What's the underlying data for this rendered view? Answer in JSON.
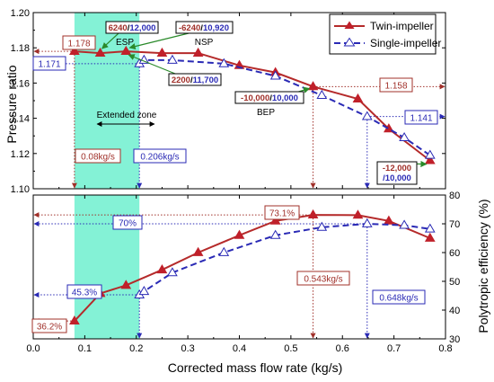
{
  "colors": {
    "twin": "#b52a2a",
    "twin_marker": "#c0202a",
    "single": "#2a2ab5",
    "zone": "#6ff0cf",
    "annot_red": "#a0302a",
    "annot_blue": "#2a2ab5",
    "green_arrow": "#2a8a2a"
  },
  "chart_data": [
    {
      "type": "line",
      "panel": "top",
      "ylabel": "Pressure ratio",
      "xlim": [
        0.0,
        0.8
      ],
      "ylim": [
        1.1,
        1.2
      ],
      "y_ticks": [
        "1.10",
        "1.12",
        "1.14",
        "1.16",
        "1.18",
        "1.20"
      ],
      "legend_position": "top-right",
      "series": [
        {
          "name": "Twin-impeller",
          "x": [
            0.08,
            0.13,
            0.18,
            0.25,
            0.32,
            0.4,
            0.47,
            0.543,
            0.63,
            0.69,
            0.77
          ],
          "y": [
            1.178,
            1.177,
            1.178,
            1.177,
            1.177,
            1.17,
            1.166,
            1.158,
            1.151,
            1.134,
            1.116
          ]
        },
        {
          "name": "Single-impeller",
          "x": [
            0.206,
            0.215,
            0.27,
            0.37,
            0.47,
            0.56,
            0.648,
            0.72,
            0.77
          ],
          "y": [
            1.171,
            1.173,
            1.173,
            1.171,
            1.164,
            1.153,
            1.141,
            1.129,
            1.119
          ]
        }
      ],
      "annotations": {
        "twin_left_value": "1.178",
        "single_left_value": "1.171",
        "twin_right_value": "1.158",
        "single_right_value": "1.141",
        "flow_twin": "0.08kg/s",
        "flow_single": "0.206kg/s",
        "extended_zone": "Extended zone",
        "esp_label": "ESP",
        "esp_red": "6240",
        "esp_sep": "/",
        "esp_blue": "12,000",
        "nsp_label": "NSP",
        "nsp_red": "-6240",
        "nsp_sep": "/",
        "nsp_blue": "10,920",
        "mid_red": "2200",
        "mid_sep": "/",
        "mid_blue": "11,700",
        "bep_label": "BEP",
        "bep_red": "-10,000",
        "bep_sep": "/",
        "bep_blue": "10,000",
        "end_red": "-12,000",
        "end_blue": "/10,000"
      }
    },
    {
      "type": "line",
      "panel": "bottom",
      "ylabel": "Polytropic efficiency (%)",
      "xlabel": "Corrected mass flow rate (kg/s)",
      "xlim": [
        0.0,
        0.8
      ],
      "ylim": [
        30,
        80
      ],
      "x_ticks": [
        "0.0",
        "0.1",
        "0.2",
        "0.3",
        "0.4",
        "0.5",
        "0.6",
        "0.7",
        "0.8"
      ],
      "y_ticks": [
        "30",
        "40",
        "50",
        "60",
        "70",
        "80"
      ],
      "series": [
        {
          "name": "Twin-impeller",
          "x": [
            0.08,
            0.13,
            0.18,
            0.25,
            0.32,
            0.4,
            0.47,
            0.543,
            0.63,
            0.69,
            0.77
          ],
          "y": [
            36.2,
            45.8,
            48.6,
            54.0,
            60.0,
            66.0,
            71.0,
            73.1,
            73.0,
            71.0,
            65.0
          ]
        },
        {
          "name": "Single-impeller",
          "x": [
            0.206,
            0.215,
            0.27,
            0.37,
            0.47,
            0.56,
            0.648,
            0.72,
            0.77
          ],
          "y": [
            45.3,
            46.5,
            53.0,
            60.0,
            66.0,
            68.8,
            70.0,
            69.5,
            68.2
          ]
        }
      ],
      "annotations": {
        "twin_peak": "73.1%",
        "single_peak": "70%",
        "single_left": "45.3%",
        "twin_left": "36.2%",
        "flow_twin_best": "0.543kg/s",
        "flow_single_best": "0.648kg/s"
      }
    }
  ]
}
